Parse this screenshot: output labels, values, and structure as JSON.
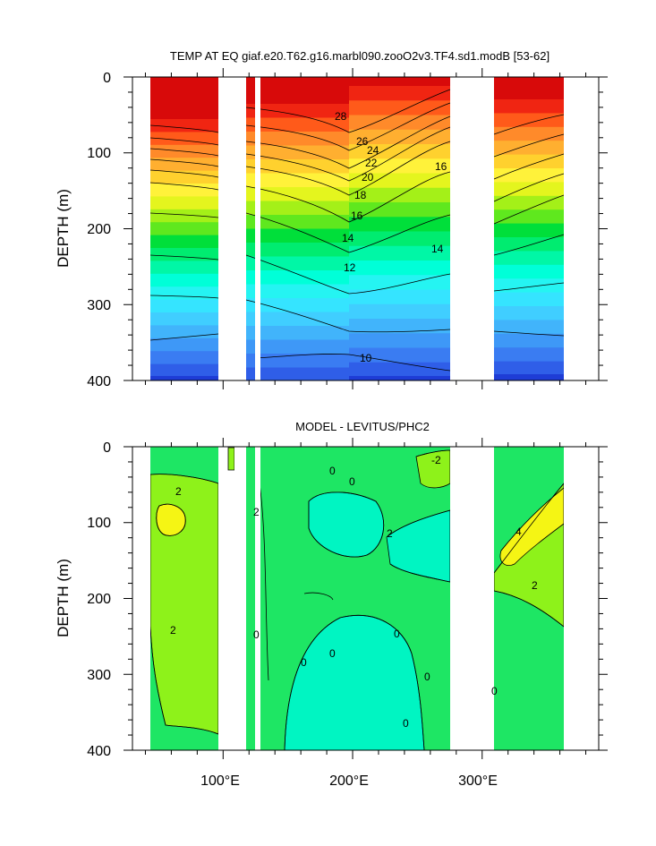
{
  "chart_data": [
    {
      "type": "heatmap",
      "subtype": "filled-contour",
      "title": "TEMP AT EQ giaf.e20.T62.g16.marbl090.zooO2v3.TF4.sd1.modB [53-62]",
      "xlabel": "",
      "ylabel": "DEPTH (m)",
      "xlim": [
        30,
        390
      ],
      "ylim": [
        400,
        0
      ],
      "yticks": [
        "0",
        "100",
        "200",
        "300",
        "400"
      ],
      "xticks": [
        "100°E",
        "200°E",
        "300°E"
      ],
      "contour_labels": [
        "28",
        "26",
        "24",
        "22",
        "20",
        "18",
        "16",
        "14",
        "12",
        "10",
        "16",
        "14"
      ],
      "ocean_segments_lon": [
        [
          45,
          97
        ],
        [
          118,
          128
        ],
        [
          130,
          278
        ],
        [
          313,
          368
        ]
      ],
      "levels": [
        9,
        10,
        11,
        12,
        13,
        14,
        15,
        16,
        17,
        18,
        19,
        20,
        21,
        22,
        23,
        24,
        25,
        26,
        27,
        28,
        29
      ],
      "palette": [
        "#1e3cd6",
        "#2f5ee8",
        "#3a7cf2",
        "#3e98f7",
        "#41b4fb",
        "#40ceff",
        "#35e4ff",
        "#25f4f2",
        "#00ffd8",
        "#00f7a6",
        "#00ec70",
        "#00df3a",
        "#5fe81e",
        "#a4f018",
        "#e4f51e",
        "#fff23a",
        "#ffd12e",
        "#ffaf30",
        "#ff8a2a",
        "#ff5a1a",
        "#f02512",
        "#d80a0a"
      ]
    },
    {
      "type": "heatmap",
      "subtype": "filled-contour",
      "title": "MODEL - LEVITUS/PHC2",
      "xlabel": "",
      "ylabel": "DEPTH (m)",
      "xlim": [
        30,
        390
      ],
      "ylim": [
        400,
        0
      ],
      "yticks": [
        "0",
        "100",
        "200",
        "300",
        "400"
      ],
      "xticks": [
        "100°E",
        "200°E",
        "300°E"
      ],
      "contour_labels": [
        "2",
        "2",
        "2",
        "2",
        "0",
        "0",
        "0",
        "0",
        "0",
        "0",
        "0",
        "0",
        "0",
        "4",
        "2",
        "-2"
      ],
      "ocean_segments_lon": [
        [
          45,
          97
        ],
        [
          118,
          128
        ],
        [
          130,
          278
        ],
        [
          313,
          368
        ]
      ],
      "palette": {
        "lt_minus1": "#00f5c2",
        "m1_to_1": "#1ee664",
        "1_to_3": "#8ef21a",
        "3_to_5": "#f5f514"
      }
    }
  ]
}
